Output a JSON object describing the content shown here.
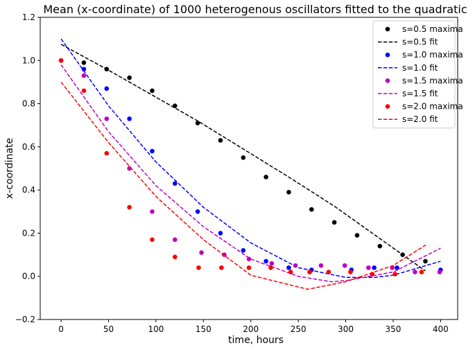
{
  "chart_data": {
    "type": "scatter",
    "title": "Mean (x-coordinate) of 1000 heterogenous oscillators fitted to the quadratic",
    "xlabel": "time, hours",
    "ylabel": "x-coordinate",
    "xlim": [
      -22,
      418
    ],
    "ylim": [
      -0.2,
      1.2
    ],
    "xticks": [
      0,
      50,
      100,
      150,
      200,
      250,
      300,
      350,
      400
    ],
    "yticks": [
      -0.2,
      0.0,
      0.2,
      0.4,
      0.6,
      0.8,
      1.0,
      1.2
    ],
    "ytick_labels": [
      "−0.2",
      "0.0",
      "0.2",
      "0.4",
      "0.6",
      "0.8",
      "1.0",
      "1.2"
    ],
    "legend_position": "top-right",
    "grid": false,
    "series": [
      {
        "name": "s=0.5 maxima",
        "kind": "points",
        "color": "#000000",
        "x": [
          0,
          24,
          48,
          72,
          96,
          120,
          144,
          168,
          192,
          216,
          240,
          264,
          288,
          312,
          336,
          360,
          384
        ],
        "y": [
          1.0,
          0.99,
          0.96,
          0.92,
          0.86,
          0.79,
          0.71,
          0.63,
          0.55,
          0.46,
          0.39,
          0.31,
          0.25,
          0.19,
          0.14,
          0.1,
          0.07
        ]
      },
      {
        "name": "s=0.5 fit",
        "kind": "dashed-line",
        "color": "#000000",
        "x": [
          0,
          48,
          96,
          144,
          192,
          240,
          288,
          336,
          384
        ],
        "y": [
          1.075,
          0.96,
          0.84,
          0.72,
          0.59,
          0.46,
          0.325,
          0.175,
          0.025
        ]
      },
      {
        "name": "s=1.0 maxima",
        "kind": "points",
        "color": "#0000ff",
        "x": [
          0,
          24,
          48,
          72,
          96,
          120,
          144,
          168,
          192,
          216,
          240,
          264,
          306,
          330,
          354,
          400
        ],
        "y": [
          1.0,
          0.96,
          0.87,
          0.73,
          0.58,
          0.43,
          0.3,
          0.2,
          0.12,
          0.07,
          0.04,
          0.03,
          0.03,
          0.04,
          0.04,
          0.03
        ]
      },
      {
        "name": "s=1.0 fit",
        "kind": "dashed-line",
        "color": "#0000ff",
        "x": [
          0,
          50,
          100,
          150,
          200,
          250,
          300,
          330,
          350,
          400
        ],
        "y": [
          1.1,
          0.79,
          0.53,
          0.32,
          0.155,
          0.04,
          -0.005,
          -0.005,
          0.005,
          0.07
        ]
      },
      {
        "name": "s=1.5 maxima",
        "kind": "points",
        "color": "#bf00bf",
        "x": [
          0,
          24,
          48,
          72,
          96,
          120,
          148,
          172,
          198,
          222,
          247,
          262,
          274,
          299,
          324,
          349,
          373,
          399
        ],
        "y": [
          1.0,
          0.93,
          0.73,
          0.5,
          0.3,
          0.17,
          0.11,
          0.1,
          0.08,
          0.06,
          0.05,
          0.02,
          0.05,
          0.05,
          0.04,
          0.04,
          0.02,
          0.02
        ]
      },
      {
        "name": "s=1.5 fit",
        "kind": "dashed-line",
        "color": "#bf00bf",
        "x": [
          0,
          50,
          100,
          150,
          200,
          250,
          285,
          300,
          350,
          400
        ],
        "y": [
          0.98,
          0.67,
          0.42,
          0.23,
          0.08,
          0.0,
          -0.025,
          -0.02,
          0.02,
          0.13
        ]
      },
      {
        "name": "s=2.0 maxima",
        "kind": "points",
        "color": "#ff0000",
        "x": [
          0,
          24,
          48,
          72,
          96,
          120,
          145,
          169,
          198,
          221,
          242,
          262,
          282,
          305,
          328,
          352,
          380
        ],
        "y": [
          1.0,
          0.86,
          0.57,
          0.32,
          0.17,
          0.09,
          0.04,
          0.04,
          0.04,
          0.04,
          0.02,
          0.02,
          0.02,
          0.02,
          0.01,
          0.01,
          0.02
        ]
      },
      {
        "name": "s=2.0 fit",
        "kind": "dashed-line",
        "color": "#ff0000",
        "x": [
          0,
          50,
          100,
          150,
          200,
          260,
          300,
          350,
          386
        ],
        "y": [
          0.9,
          0.62,
          0.37,
          0.17,
          0.005,
          -0.06,
          -0.025,
          0.05,
          0.15
        ]
      }
    ]
  }
}
